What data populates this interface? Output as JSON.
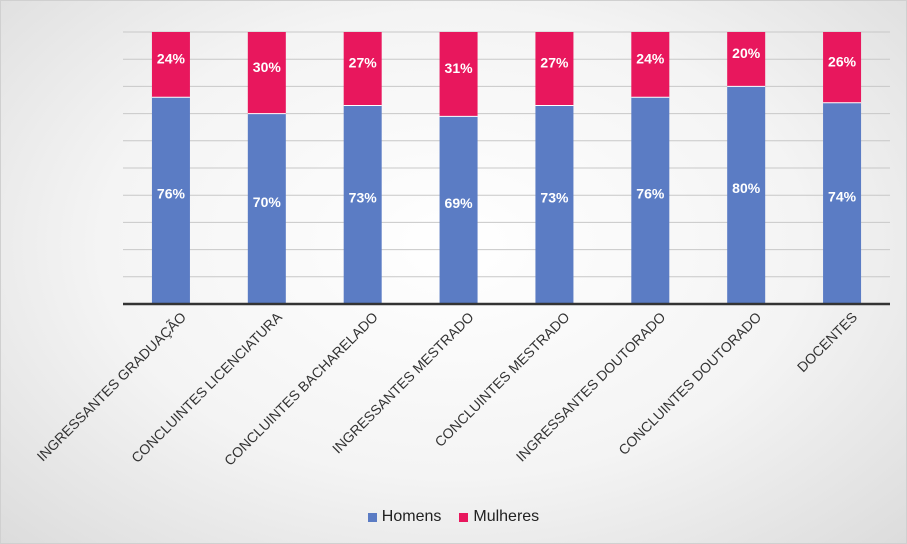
{
  "chart_data": {
    "type": "bar",
    "stacked": true,
    "percent_stacked": true,
    "categories": [
      "INGRESSANTES GRADUAÇÃO",
      "CONCLUINTES LICENCIATURA",
      "CONCLUINTES BACHARELADO",
      "INGRESSANTES MESTRADO",
      "CONCLUINTES MESTRADO",
      "INGRESSANTES DOUTORADO",
      "CONCLUINTES DOUTORADO",
      "DOCENTES"
    ],
    "series": [
      {
        "name": "Homens",
        "color": "#5b7cc4",
        "values": [
          76,
          70,
          73,
          69,
          73,
          76,
          80,
          74
        ],
        "labels": [
          "76%",
          "70%",
          "73%",
          "69%",
          "73%",
          "76%",
          "80%",
          "74%"
        ]
      },
      {
        "name": "Mulheres",
        "color": "#e8175d",
        "values": [
          24,
          30,
          27,
          31,
          27,
          24,
          20,
          26
        ],
        "labels": [
          "24%",
          "30%",
          "27%",
          "31%",
          "27%",
          "24%",
          "20%",
          "26%"
        ]
      }
    ],
    "ylim": [
      0,
      100
    ],
    "grid": true,
    "legend_position": "bottom"
  }
}
